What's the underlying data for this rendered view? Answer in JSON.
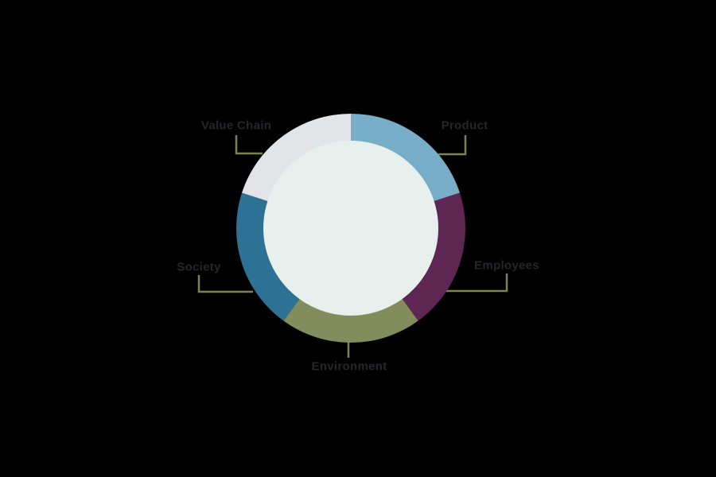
{
  "chart_data": {
    "type": "pie",
    "subtype": "donut",
    "title": "",
    "direction": "clockwise",
    "start_position": "top",
    "legend_position": "callout-labels",
    "units": "percent-estimated",
    "segments": [
      {
        "label": "Product",
        "value": 20,
        "color": "#79aec9"
      },
      {
        "label": "Employees",
        "value": 20,
        "color": "#5e2652"
      },
      {
        "label": "Environment",
        "value": 20,
        "color": "#838c5c"
      },
      {
        "label": "Society",
        "value": 20,
        "color": "#2d7195"
      },
      {
        "label": "Value Chain",
        "value": 20,
        "color": "#e3e4e8"
      }
    ],
    "center_fill": "#e8f0ee",
    "background_color": "#000000",
    "callout_line_color": "#7d8454",
    "label_text_color": "#26262b"
  }
}
